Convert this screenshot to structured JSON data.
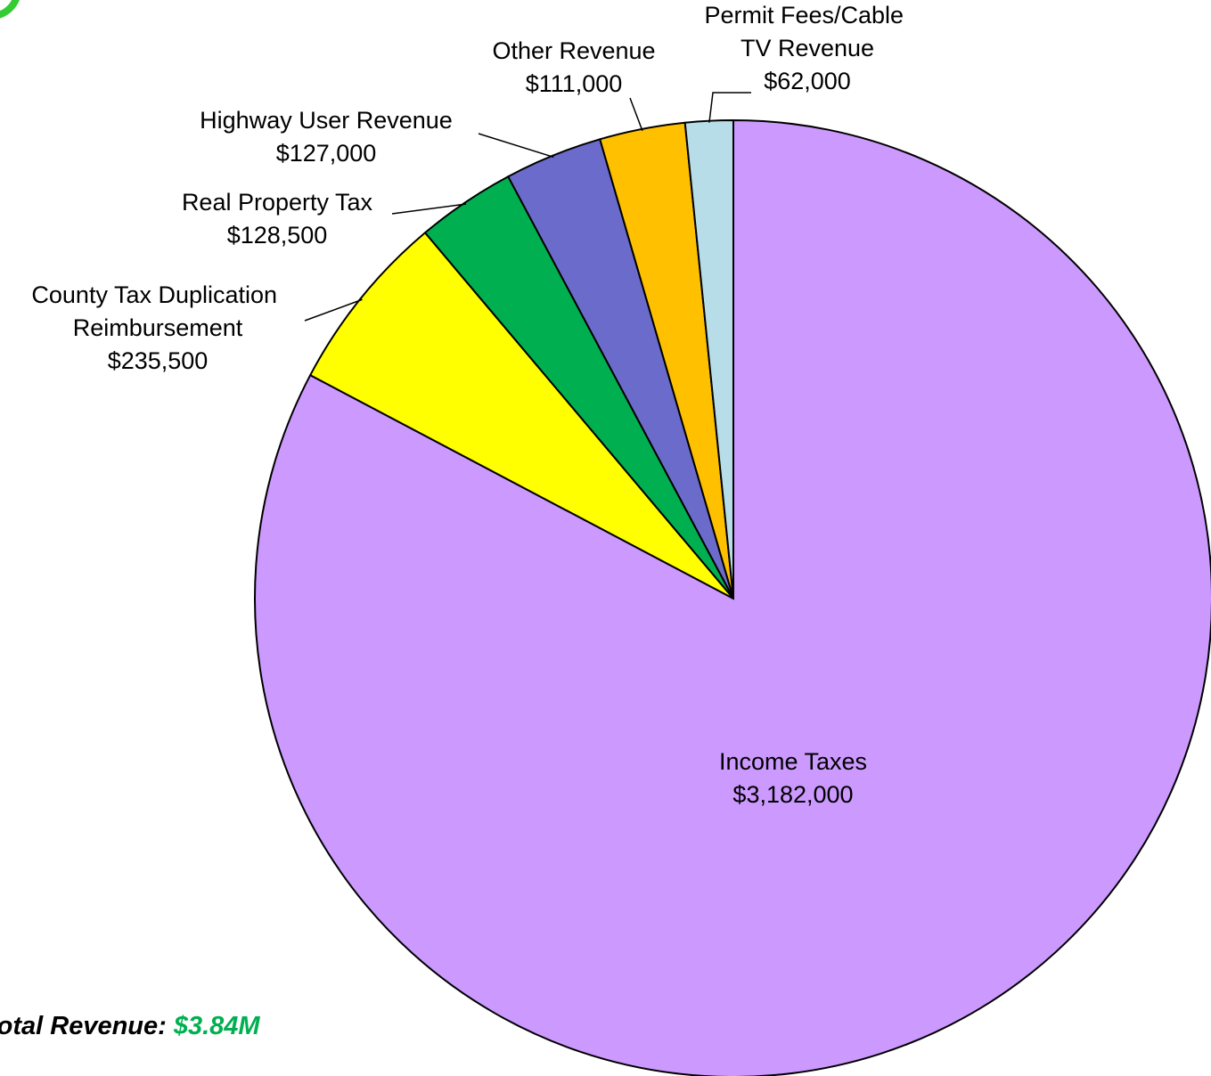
{
  "chart_data": {
    "type": "pie",
    "categories": [
      "Income Taxes",
      "County Tax Duplication Reimbursement",
      "Real Property Tax",
      "Highway User Revenue",
      "Other Revenue",
      "Permit Fees/Cable TV Revenue"
    ],
    "values": [
      3182000,
      235500,
      128500,
      127000,
      111000,
      62000
    ],
    "value_labels": [
      "$3,182,000",
      "$235,500",
      "$128,500",
      "$127,000",
      "$111,000",
      "$62,000"
    ],
    "colors": [
      "#cc99ff",
      "#ffff00",
      "#00b050",
      "#6b6bcc",
      "#ffc000",
      "#b7dde8"
    ],
    "total_label": "Total Revenue:",
    "total_value_label": "$3.84M"
  }
}
